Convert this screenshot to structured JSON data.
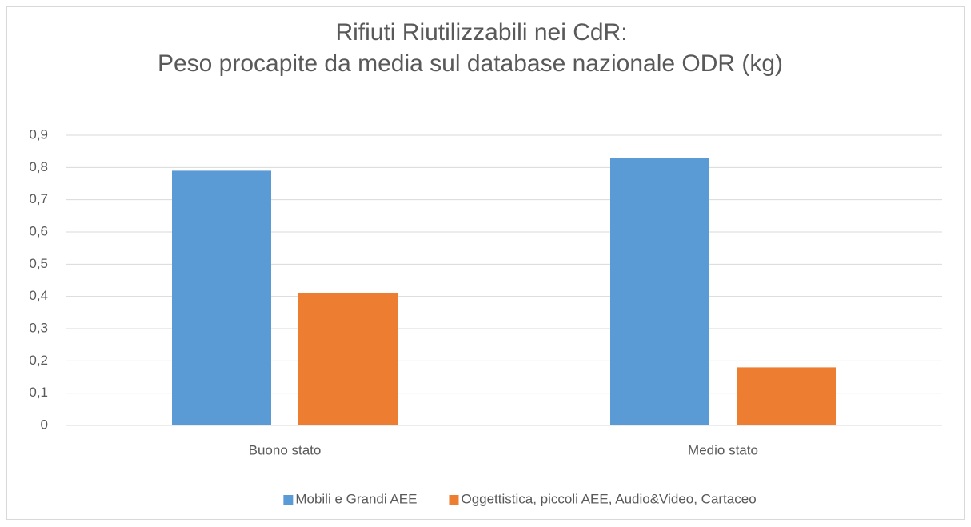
{
  "chart_data": {
    "type": "bar",
    "title": [
      "Rifiuti Riutilizzabili nei CdR:",
      "Peso procapite da media sul database nazionale ODR (kg)"
    ],
    "categories": [
      "Buono stato",
      "Medio stato"
    ],
    "series": [
      {
        "name": "Mobili e Grandi AEE",
        "color": "#5b9bd5",
        "values": [
          0.79,
          0.83
        ]
      },
      {
        "name": "Oggettistica, piccoli AEE, Audio&Video, Cartaceo",
        "color": "#ed7d31",
        "values": [
          0.41,
          0.18
        ]
      }
    ],
    "ylim": [
      0,
      0.9
    ],
    "yticks": [
      0,
      {
        "value": 0.1,
        "label": "0,1"
      },
      {
        "value": 0.2,
        "label": "0,2"
      },
      {
        "value": 0.3,
        "label": "0,3"
      },
      {
        "value": 0.4,
        "label": "0,4"
      },
      {
        "value": 0.5,
        "label": "0,5"
      },
      {
        "value": 0.6,
        "label": "0,6"
      },
      {
        "value": 0.7,
        "label": "0,7"
      },
      {
        "value": 0.8,
        "label": "0,8"
      },
      {
        "value": 0.9,
        "label": "0,9"
      }
    ],
    "grid": true,
    "legend": "bottom"
  }
}
